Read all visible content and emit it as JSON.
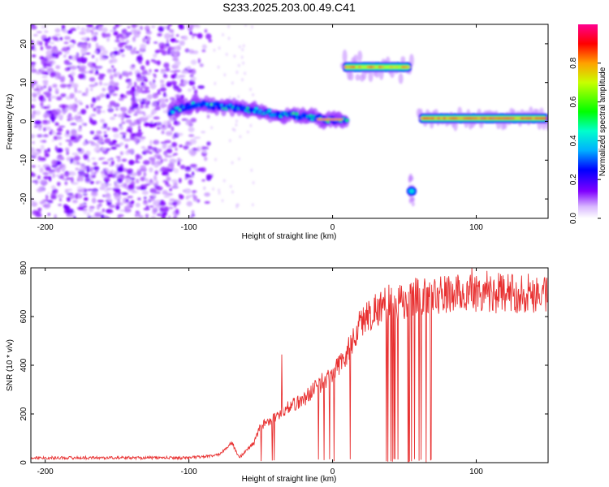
{
  "title": "S233.2025.203.00.49.C41",
  "chart_data": [
    {
      "type": "heatmap",
      "xlabel": "Height of straight line (km)",
      "ylabel": "Frequency (Hz)",
      "xlim": [
        -210,
        150
      ],
      "ylim": [
        -25,
        25
      ],
      "x_ticks": [
        -200,
        -100,
        0,
        100
      ],
      "y_ticks": [
        -20,
        -10,
        0,
        10,
        20
      ],
      "colorbar": {
        "label": "Normalized spectral amplitude",
        "range": [
          0,
          1
        ],
        "ticks": [
          "0.0",
          "0.2",
          "0.4",
          "0.6",
          "0.8"
        ],
        "colormap": "rainbow"
      },
      "features": [
        {
          "name": "noise",
          "x_range": [
            -210,
            -85
          ],
          "y_range": [
            -25,
            25
          ],
          "amplitude": 0.1
        },
        {
          "name": "line-segment",
          "x": [
            -113,
            -95,
            -80,
            -65,
            -50,
            -35,
            -20,
            -5,
            10
          ],
          "y": [
            2.5,
            4.5,
            4,
            3.5,
            2.5,
            1.5,
            1.5,
            0.5,
            0.5
          ],
          "amplitude": 0.45
        },
        {
          "name": "upper-tone",
          "x_range": [
            7,
            55
          ],
          "y": 14,
          "amplitude": 0.7
        },
        {
          "name": "lower-tone",
          "x_range": [
            52,
            58
          ],
          "y": -18,
          "amplitude": 0.3
        },
        {
          "name": "main-tone",
          "x_range": [
            60,
            150
          ],
          "y": 0.8,
          "amplitude": 0.75
        }
      ]
    },
    {
      "type": "line",
      "xlabel": "Height of straight line (km)",
      "ylabel": "SNR (10 * v/v)",
      "xlim": [
        -210,
        150
      ],
      "ylim": [
        0,
        800
      ],
      "x_ticks": [
        -200,
        -100,
        0,
        100
      ],
      "y_ticks": [
        0,
        200,
        400,
        600,
        800
      ],
      "line_color": "#e83030",
      "envelope": {
        "x": [
          -210,
          -100,
          -80,
          -70,
          -65,
          -55,
          -50,
          -40,
          -30,
          -20,
          -10,
          0,
          10,
          20,
          30,
          40,
          60,
          80,
          100,
          120,
          150
        ],
        "y": [
          20,
          20,
          30,
          80,
          20,
          80,
          150,
          190,
          230,
          260,
          320,
          360,
          450,
          580,
          630,
          660,
          680,
          690,
          700,
          695,
          700
        ]
      },
      "dropouts_x_range": [
        -50,
        70
      ]
    }
  ]
}
